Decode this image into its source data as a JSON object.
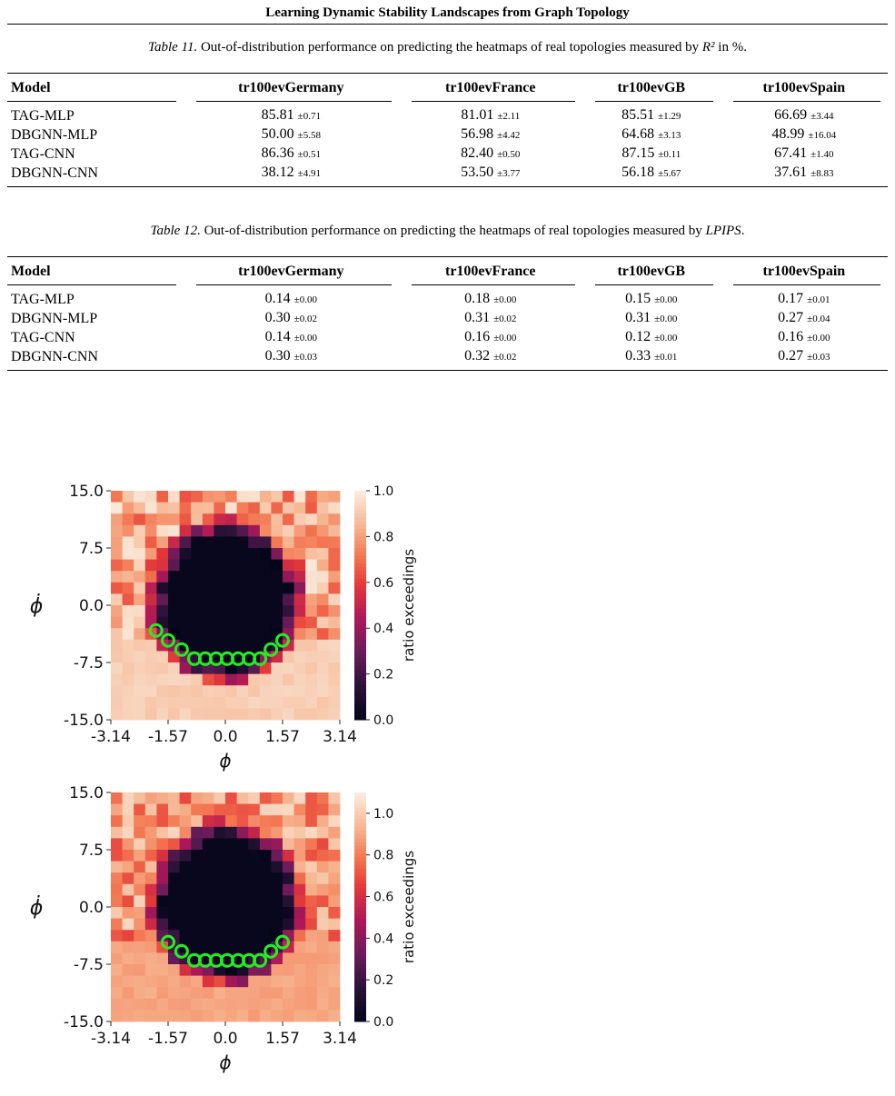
{
  "running_head": "Learning Dynamic Stability Landscapes from Graph Topology",
  "table11": {
    "caption_label": "Table 11.",
    "caption_text": "Out-of-distribution performance on predicting the heatmaps of real topologies measured by",
    "caption_metric": "R²",
    "caption_suffix": "in %.",
    "columns": [
      "Model",
      "tr100evGermany",
      "tr100evFrance",
      "tr100evGB",
      "tr100evSpain"
    ],
    "rows": [
      {
        "model": "TAG-MLP",
        "cells": [
          [
            "85.81",
            "±0.71"
          ],
          [
            "81.01",
            "±2.11"
          ],
          [
            "85.51",
            "±1.29"
          ],
          [
            "66.69",
            "±3.44"
          ]
        ]
      },
      {
        "model": "DBGNN-MLP",
        "cells": [
          [
            "50.00",
            "±5.58"
          ],
          [
            "56.98",
            "±4.42"
          ],
          [
            "64.68",
            "±3.13"
          ],
          [
            "48.99",
            "±16.04"
          ]
        ]
      },
      {
        "model": "TAG-CNN",
        "cells": [
          [
            "86.36",
            "±0.51"
          ],
          [
            "82.40",
            "±0.50"
          ],
          [
            "87.15",
            "±0.11"
          ],
          [
            "67.41",
            "±1.40"
          ]
        ]
      },
      {
        "model": "DBGNN-CNN",
        "cells": [
          [
            "38.12",
            "±4.91"
          ],
          [
            "53.50",
            "±3.77"
          ],
          [
            "56.18",
            "±5.67"
          ],
          [
            "37.61",
            "±8.83"
          ]
        ]
      }
    ]
  },
  "table12": {
    "caption_label": "Table 12.",
    "caption_text": "Out-of-distribution performance on predicting the heatmaps of real topologies measured by",
    "caption_metric": "LPIPS",
    "caption_suffix": ".",
    "columns": [
      "Model",
      "tr100evGermany",
      "tr100evFrance",
      "tr100evGB",
      "tr100evSpain"
    ],
    "rows": [
      {
        "model": "TAG-MLP",
        "cells": [
          [
            "0.14",
            "±0.00"
          ],
          [
            "0.18",
            "±0.00"
          ],
          [
            "0.15",
            "±0.00"
          ],
          [
            "0.17",
            "±0.01"
          ]
        ]
      },
      {
        "model": "DBGNN-MLP",
        "cells": [
          [
            "0.30",
            "±0.02"
          ],
          [
            "0.31",
            "±0.02"
          ],
          [
            "0.31",
            "±0.00"
          ],
          [
            "0.27",
            "±0.04"
          ]
        ]
      },
      {
        "model": "TAG-CNN",
        "cells": [
          [
            "0.14",
            "±0.00"
          ],
          [
            "0.16",
            "±0.00"
          ],
          [
            "0.12",
            "±0.00"
          ],
          [
            "0.16",
            "±0.00"
          ]
        ]
      },
      {
        "model": "DBGNN-CNN",
        "cells": [
          [
            "0.30",
            "±0.03"
          ],
          [
            "0.32",
            "±0.02"
          ],
          [
            "0.33",
            "±0.01"
          ],
          [
            "0.27",
            "±0.03"
          ]
        ]
      }
    ]
  },
  "chart_data": [
    {
      "type": "heatmap",
      "xlabel": "ϕ",
      "ylabel": "ϕ̇",
      "xticks": [
        "-3.14",
        "-1.57",
        "0.0",
        "1.57",
        "3.14"
      ],
      "yticks": [
        "15.0",
        "7.5",
        "0.0",
        "-7.5",
        "-15.0"
      ],
      "xlim": [
        -3.14,
        3.14
      ],
      "ylim": [
        -15.0,
        15.0
      ],
      "colorbar_label": "ratio exceedings",
      "colorbar_ticks": [
        "1.0",
        "0.8",
        "0.6",
        "0.4",
        "0.2",
        "0.0"
      ],
      "colorbar_range": [
        0.0,
        1.0
      ],
      "grid": "20x20",
      "marker_color": "#22ee22",
      "markers": [
        [
          -1.9,
          -3.3
        ],
        [
          -1.57,
          -4.6
        ],
        [
          -1.2,
          -5.8
        ],
        [
          -0.85,
          -7.0
        ],
        [
          -0.55,
          -7.0
        ],
        [
          -0.25,
          -7.0
        ],
        [
          0.05,
          -7.0
        ],
        [
          0.35,
          -7.0
        ],
        [
          0.65,
          -7.0
        ],
        [
          0.95,
          -7.0
        ],
        [
          1.25,
          -5.8
        ],
        [
          1.57,
          -4.6
        ]
      ]
    },
    {
      "type": "heatmap",
      "xlabel": "ϕ",
      "ylabel": "ϕ̇",
      "xticks": [
        "-3.14",
        "-1.57",
        "0.0",
        "1.57",
        "3.14"
      ],
      "yticks": [
        "15.0",
        "7.5",
        "0.0",
        "-7.5",
        "-15.0"
      ],
      "xlim": [
        -3.14,
        3.14
      ],
      "ylim": [
        -15.0,
        15.0
      ],
      "colorbar_label": "ratio exceedings",
      "colorbar_ticks": [
        "1.0",
        "0.8",
        "0.6",
        "0.4",
        "0.2",
        "0.0"
      ],
      "colorbar_range": [
        0.0,
        1.1
      ],
      "grid": "20x20",
      "marker_color": "#22ee22",
      "markers": [
        [
          -1.57,
          -4.6
        ],
        [
          -1.2,
          -5.8
        ],
        [
          -0.85,
          -7.0
        ],
        [
          -0.55,
          -7.0
        ],
        [
          -0.25,
          -7.0
        ],
        [
          0.05,
          -7.0
        ],
        [
          0.35,
          -7.0
        ],
        [
          0.65,
          -7.0
        ],
        [
          0.95,
          -7.0
        ],
        [
          1.25,
          -5.8
        ],
        [
          1.57,
          -4.6
        ]
      ]
    }
  ]
}
